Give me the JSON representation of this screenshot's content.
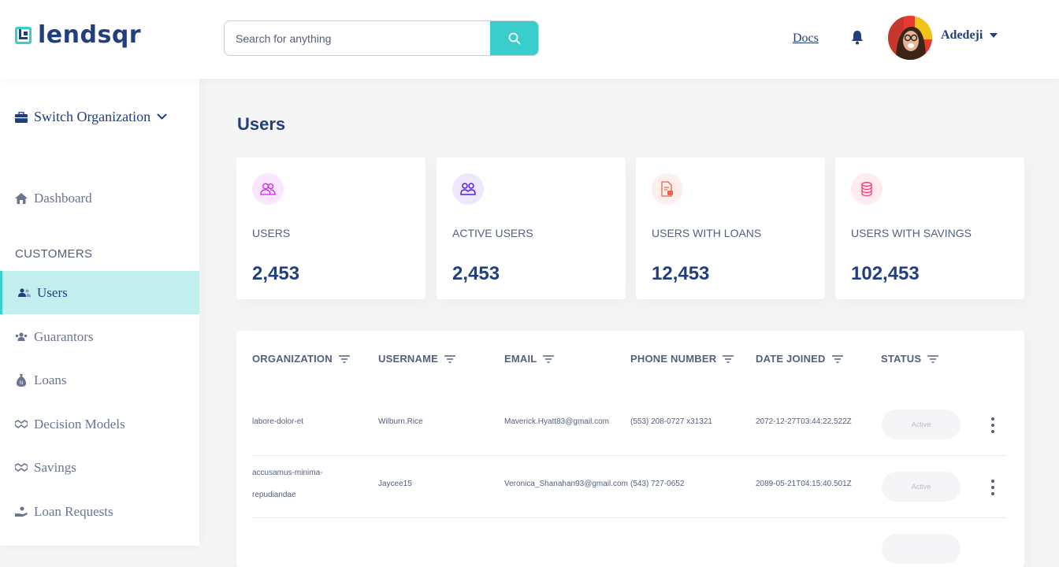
{
  "brand": {
    "name": "lendsqr"
  },
  "search": {
    "placeholder": "Search for anything"
  },
  "header": {
    "docs_label": "Docs",
    "user_name": "Adedeji"
  },
  "sidebar": {
    "switch_org_label": "Switch Organization",
    "dashboard_label": "Dashboard",
    "section_customers": "CUSTOMERS",
    "items": [
      {
        "label": "Users",
        "icon": "users-icon",
        "active": true
      },
      {
        "label": "Guarantors",
        "icon": "guarantors-icon"
      },
      {
        "label": "Loans",
        "icon": "money-sack-icon"
      },
      {
        "label": "Decision Models",
        "icon": "handshake-icon"
      },
      {
        "label": "Savings",
        "icon": "piggy-bank-icon"
      },
      {
        "label": "Loan Requests",
        "icon": "hand-coin-icon"
      }
    ]
  },
  "page": {
    "title": "Users"
  },
  "stats": [
    {
      "label": "USERS",
      "value": "2,453",
      "icon": "users-icon",
      "color": "#df18ff"
    },
    {
      "label": "ACTIVE USERS",
      "value": "2,453",
      "icon": "active-users-icon",
      "color": "#5718ff"
    },
    {
      "label": "USERS WITH LOANS",
      "value": "12,453",
      "icon": "loan-document-icon",
      "color": "#f55f44"
    },
    {
      "label": "USERS WITH SAVINGS",
      "value": "102,453",
      "icon": "coins-icon",
      "color": "#ff3366"
    }
  ],
  "table": {
    "columns": [
      "ORGANIZATION",
      "USERNAME",
      "EMAIL",
      "PHONE NUMBER",
      "DATE JOINED",
      "STATUS"
    ],
    "rows": [
      {
        "org_lines": [
          "labore-dolor-et"
        ],
        "username": "Wilburn.Rice",
        "email": "Maverick.Hyatt83@gmail.com",
        "phone": "(553) 208-0727 x31321",
        "date": "2072-12-27T03:44:22.522Z",
        "status": "Active"
      },
      {
        "org_lines": [
          "accusamus-minima-",
          "repudiandae"
        ],
        "username": "Jaycee15",
        "email": "Veronica_Shanahan93@gmail.com",
        "phone": "(543) 727-0652",
        "date": "2089-05-21T04:15:40.501Z",
        "status": "Active"
      }
    ]
  },
  "colors": {
    "accent": "#39cdcc",
    "primary": "#213f7d",
    "text": "#545f7d"
  }
}
